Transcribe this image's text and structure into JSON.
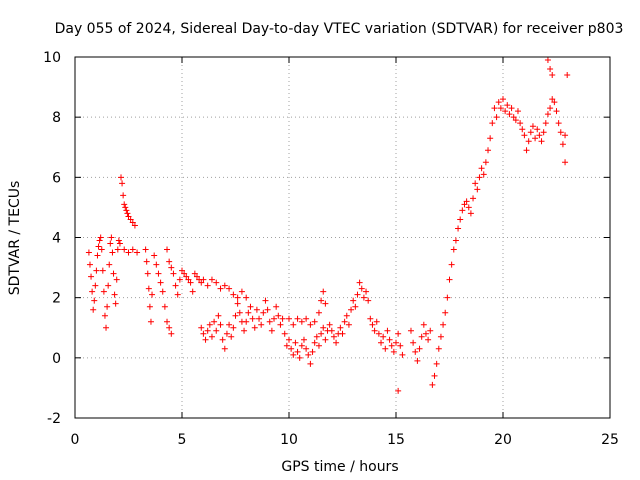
{
  "chart_data": {
    "type": "scatter",
    "title": "Day 055 of 2024, Sidereal Day-to-day VTEC variation (SDTVAR) for receiver p803",
    "xlabel": "GPS time / hours",
    "ylabel": "SDTVAR / TECUs",
    "xlim": [
      0,
      25
    ],
    "ylim": [
      -2,
      10
    ],
    "xticks": [
      0,
      5,
      10,
      15,
      20,
      25
    ],
    "yticks": [
      -2,
      0,
      2,
      4,
      6,
      8,
      10
    ],
    "xtick_labels": [
      "0",
      "5",
      "10",
      "15",
      "20",
      "25"
    ],
    "ytick_labels": [
      "-2",
      "0",
      "2",
      "4",
      "6",
      "8",
      "10"
    ],
    "grid": true,
    "marker": "+",
    "colors": {
      "series": "#ff0000",
      "axis": "#000000",
      "grid": "#a0a0a0"
    },
    "series": [
      {
        "name": "SDTVAR",
        "points": [
          [
            0.65,
            3.5
          ],
          [
            0.7,
            3.1
          ],
          [
            0.75,
            2.7
          ],
          [
            0.8,
            2.2
          ],
          [
            0.85,
            1.6
          ],
          [
            0.9,
            1.9
          ],
          [
            0.95,
            2.4
          ],
          [
            1.0,
            2.9
          ],
          [
            1.05,
            3.4
          ],
          [
            1.1,
            3.7
          ],
          [
            1.15,
            3.9
          ],
          [
            1.2,
            4.0
          ],
          [
            1.25,
            3.6
          ],
          [
            1.3,
            2.9
          ],
          [
            1.35,
            2.2
          ],
          [
            1.4,
            1.4
          ],
          [
            1.45,
            1.0
          ],
          [
            1.5,
            1.7
          ],
          [
            1.55,
            2.4
          ],
          [
            1.6,
            3.1
          ],
          [
            1.65,
            3.8
          ],
          [
            1.7,
            4.0
          ],
          [
            1.75,
            3.5
          ],
          [
            1.8,
            2.8
          ],
          [
            1.85,
            2.1
          ],
          [
            1.9,
            1.8
          ],
          [
            1.95,
            2.6
          ],
          [
            2.0,
            3.6
          ],
          [
            2.05,
            3.9
          ],
          [
            2.1,
            3.8
          ],
          [
            2.15,
            6.0
          ],
          [
            2.2,
            5.8
          ],
          [
            2.25,
            5.4
          ],
          [
            2.3,
            5.1
          ],
          [
            2.35,
            5.0
          ],
          [
            2.4,
            4.9
          ],
          [
            2.45,
            4.8
          ],
          [
            2.5,
            4.7
          ],
          [
            2.6,
            4.6
          ],
          [
            2.7,
            4.5
          ],
          [
            2.8,
            4.4
          ],
          [
            2.3,
            3.6
          ],
          [
            2.5,
            3.5
          ],
          [
            2.7,
            3.6
          ],
          [
            2.9,
            3.5
          ],
          [
            3.3,
            3.6
          ],
          [
            3.35,
            3.2
          ],
          [
            3.4,
            2.8
          ],
          [
            3.45,
            2.3
          ],
          [
            3.5,
            1.7
          ],
          [
            3.55,
            1.2
          ],
          [
            3.6,
            2.1
          ],
          [
            3.7,
            3.4
          ],
          [
            3.8,
            3.1
          ],
          [
            3.9,
            2.8
          ],
          [
            4.0,
            2.5
          ],
          [
            4.1,
            2.2
          ],
          [
            4.2,
            1.7
          ],
          [
            4.3,
            1.2
          ],
          [
            4.4,
            1.0
          ],
          [
            4.5,
            0.8
          ],
          [
            4.3,
            3.6
          ],
          [
            4.4,
            3.2
          ],
          [
            4.5,
            3.0
          ],
          [
            4.6,
            2.8
          ],
          [
            4.7,
            2.4
          ],
          [
            4.8,
            2.1
          ],
          [
            4.9,
            2.6
          ],
          [
            5.0,
            2.9
          ],
          [
            5.1,
            2.8
          ],
          [
            5.2,
            2.7
          ],
          [
            5.3,
            2.6
          ],
          [
            5.4,
            2.5
          ],
          [
            5.5,
            2.2
          ],
          [
            5.6,
            2.8
          ],
          [
            5.7,
            2.7
          ],
          [
            5.8,
            2.6
          ],
          [
            5.9,
            2.5
          ],
          [
            6.0,
            2.6
          ],
          [
            6.2,
            2.4
          ],
          [
            6.4,
            2.6
          ],
          [
            6.6,
            2.5
          ],
          [
            6.8,
            2.3
          ],
          [
            7.0,
            2.4
          ],
          [
            7.2,
            2.3
          ],
          [
            7.4,
            2.1
          ],
          [
            7.6,
            2.0
          ],
          [
            7.8,
            2.2
          ],
          [
            8.0,
            2.0
          ],
          [
            5.9,
            1.0
          ],
          [
            6.0,
            0.8
          ],
          [
            6.1,
            0.6
          ],
          [
            6.2,
            0.9
          ],
          [
            6.3,
            1.1
          ],
          [
            6.4,
            0.7
          ],
          [
            6.5,
            1.2
          ],
          [
            6.6,
            0.9
          ],
          [
            6.7,
            1.4
          ],
          [
            6.8,
            1.1
          ],
          [
            6.9,
            0.6
          ],
          [
            7.0,
            0.3
          ],
          [
            7.1,
            0.8
          ],
          [
            7.2,
            1.1
          ],
          [
            7.3,
            0.7
          ],
          [
            7.4,
            1.0
          ],
          [
            7.5,
            1.4
          ],
          [
            7.6,
            1.8
          ],
          [
            7.7,
            1.5
          ],
          [
            7.8,
            1.2
          ],
          [
            7.9,
            0.9
          ],
          [
            8.0,
            1.2
          ],
          [
            8.1,
            1.5
          ],
          [
            8.2,
            1.7
          ],
          [
            8.3,
            1.3
          ],
          [
            8.4,
            1.0
          ],
          [
            8.5,
            1.6
          ],
          [
            8.6,
            1.3
          ],
          [
            8.7,
            1.1
          ],
          [
            8.8,
            1.5
          ],
          [
            8.9,
            1.9
          ],
          [
            9.0,
            1.6
          ],
          [
            9.1,
            1.2
          ],
          [
            9.2,
            0.9
          ],
          [
            9.3,
            1.3
          ],
          [
            9.4,
            1.7
          ],
          [
            9.5,
            1.4
          ],
          [
            9.6,
            1.1
          ],
          [
            9.7,
            1.3
          ],
          [
            9.8,
            0.8
          ],
          [
            9.9,
            0.4
          ],
          [
            10.0,
            0.6
          ],
          [
            10.1,
            0.3
          ],
          [
            10.2,
            0.1
          ],
          [
            10.3,
            0.5
          ],
          [
            10.4,
            0.2
          ],
          [
            10.5,
            0.0
          ],
          [
            10.6,
            0.4
          ],
          [
            10.7,
            0.6
          ],
          [
            10.8,
            0.3
          ],
          [
            10.9,
            0.1
          ],
          [
            11.0,
            -0.2
          ],
          [
            11.1,
            0.2
          ],
          [
            11.2,
            0.5
          ],
          [
            11.3,
            0.7
          ],
          [
            11.4,
            0.4
          ],
          [
            11.5,
            0.8
          ],
          [
            11.6,
            1.0
          ],
          [
            11.7,
            0.6
          ],
          [
            11.8,
            0.9
          ],
          [
            11.9,
            1.1
          ],
          [
            12.0,
            0.9
          ],
          [
            12.1,
            0.7
          ],
          [
            12.2,
            0.5
          ],
          [
            12.3,
            0.8
          ],
          [
            12.4,
            1.0
          ],
          [
            12.5,
            0.8
          ],
          [
            12.6,
            1.2
          ],
          [
            12.7,
            1.4
          ],
          [
            12.8,
            1.1
          ],
          [
            12.9,
            1.6
          ],
          [
            13.0,
            1.9
          ],
          [
            13.1,
            1.7
          ],
          [
            13.2,
            2.1
          ],
          [
            13.3,
            2.5
          ],
          [
            13.4,
            2.3
          ],
          [
            13.5,
            2.0
          ],
          [
            13.6,
            2.2
          ],
          [
            13.7,
            1.9
          ],
          [
            10.0,
            1.3
          ],
          [
            10.2,
            1.1
          ],
          [
            10.4,
            1.3
          ],
          [
            10.6,
            1.2
          ],
          [
            10.8,
            1.3
          ],
          [
            11.0,
            1.1
          ],
          [
            11.2,
            1.2
          ],
          [
            11.4,
            1.5
          ],
          [
            11.5,
            1.9
          ],
          [
            11.6,
            2.2
          ],
          [
            11.7,
            1.8
          ],
          [
            13.8,
            1.3
          ],
          [
            13.9,
            1.1
          ],
          [
            14.0,
            0.9
          ],
          [
            14.1,
            1.2
          ],
          [
            14.2,
            0.8
          ],
          [
            14.3,
            0.5
          ],
          [
            14.4,
            0.7
          ],
          [
            14.5,
            0.3
          ],
          [
            14.6,
            0.9
          ],
          [
            14.7,
            0.6
          ],
          [
            14.8,
            0.4
          ],
          [
            14.9,
            0.2
          ],
          [
            15.0,
            0.5
          ],
          [
            15.1,
            0.8
          ],
          [
            15.2,
            0.4
          ],
          [
            15.3,
            0.1
          ],
          [
            15.1,
            -1.1
          ],
          [
            15.7,
            0.9
          ],
          [
            15.8,
            0.5
          ],
          [
            15.9,
            0.2
          ],
          [
            16.0,
            -0.1
          ],
          [
            16.1,
            0.3
          ],
          [
            16.2,
            0.7
          ],
          [
            16.3,
            1.1
          ],
          [
            16.4,
            0.8
          ],
          [
            16.5,
            0.6
          ],
          [
            16.6,
            0.9
          ],
          [
            16.7,
            -0.9
          ],
          [
            16.8,
            -0.6
          ],
          [
            16.9,
            -0.2
          ],
          [
            17.0,
            0.3
          ],
          [
            17.1,
            0.7
          ],
          [
            17.2,
            1.1
          ],
          [
            17.3,
            1.5
          ],
          [
            17.4,
            2.0
          ],
          [
            17.5,
            2.6
          ],
          [
            17.6,
            3.1
          ],
          [
            17.7,
            3.6
          ],
          [
            17.8,
            3.9
          ],
          [
            17.9,
            4.3
          ],
          [
            18.0,
            4.6
          ],
          [
            18.1,
            4.9
          ],
          [
            18.2,
            5.1
          ],
          [
            18.3,
            5.2
          ],
          [
            18.4,
            5.0
          ],
          [
            18.5,
            4.8
          ],
          [
            18.6,
            5.3
          ],
          [
            18.7,
            5.8
          ],
          [
            18.8,
            5.6
          ],
          [
            18.9,
            6.0
          ],
          [
            19.0,
            6.3
          ],
          [
            19.1,
            6.1
          ],
          [
            19.2,
            6.5
          ],
          [
            19.3,
            6.9
          ],
          [
            19.4,
            7.3
          ],
          [
            19.5,
            7.8
          ],
          [
            19.6,
            8.3
          ],
          [
            19.7,
            8.0
          ],
          [
            19.8,
            8.5
          ],
          [
            19.9,
            8.3
          ],
          [
            20.0,
            8.6
          ],
          [
            20.1,
            8.2
          ],
          [
            20.2,
            8.4
          ],
          [
            20.3,
            8.1
          ],
          [
            20.4,
            8.3
          ],
          [
            20.5,
            8.0
          ],
          [
            20.6,
            7.9
          ],
          [
            20.7,
            8.2
          ],
          [
            20.8,
            7.8
          ],
          [
            20.9,
            7.6
          ],
          [
            21.0,
            7.4
          ],
          [
            21.1,
            6.9
          ],
          [
            21.2,
            7.2
          ],
          [
            21.3,
            7.5
          ],
          [
            21.4,
            7.7
          ],
          [
            21.5,
            7.3
          ],
          [
            21.6,
            7.6
          ],
          [
            21.7,
            7.4
          ],
          [
            21.8,
            7.2
          ],
          [
            21.9,
            7.5
          ],
          [
            22.0,
            7.8
          ],
          [
            22.1,
            8.1
          ],
          [
            22.2,
            8.3
          ],
          [
            22.3,
            8.6
          ],
          [
            22.4,
            8.5
          ],
          [
            22.5,
            8.2
          ],
          [
            22.6,
            7.8
          ],
          [
            22.7,
            7.5
          ],
          [
            22.8,
            7.1
          ],
          [
            22.9,
            6.5
          ],
          [
            22.9,
            7.4
          ],
          [
            22.1,
            9.9
          ],
          [
            22.2,
            9.6
          ],
          [
            22.3,
            9.4
          ],
          [
            23.0,
            9.4
          ]
        ]
      }
    ]
  }
}
